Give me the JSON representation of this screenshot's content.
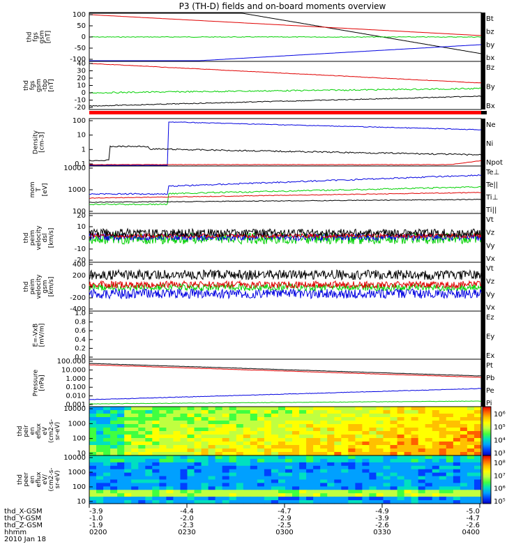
{
  "title": "P3 (TH-D) fields and on-board moments overview",
  "colors": {
    "black": "#000000",
    "red": "#e00000",
    "green": "#00d000",
    "blue": "#0000e0",
    "band": "#ff0000"
  },
  "chart_data": [
    {
      "type": "line",
      "ylabel": [
        "thd",
        "fgs",
        "gsm",
        "[nT]"
      ],
      "yticks": [
        "100",
        "50",
        "0",
        "-50",
        "-100"
      ],
      "ylim": [
        -100,
        110
      ],
      "series": [
        {
          "name": "Bt",
          "color": "black"
        },
        {
          "name": "bz",
          "color": "red"
        },
        {
          "name": "by",
          "color": "green"
        },
        {
          "name": "bx",
          "color": "blue"
        }
      ]
    },
    {
      "type": "line",
      "ylabel": [
        "thd",
        "fgs",
        "gsm",
        "-tbp",
        "[nT]"
      ],
      "yticks": [
        "40",
        "30",
        "20",
        "10",
        "0",
        "-10",
        "-20"
      ],
      "ylim": [
        -25,
        42
      ],
      "series": [
        {
          "name": "Bz",
          "color": "red"
        },
        {
          "name": "By",
          "color": "green"
        },
        {
          "name": "Bx",
          "color": "black"
        }
      ]
    },
    {
      "type": "line",
      "ylabel": [
        "Density",
        "[cm-3]"
      ],
      "yticks": [
        "100",
        "10",
        "1",
        "0.1"
      ],
      "scale": "log",
      "series": [
        {
          "name": "Ne",
          "color": "red"
        },
        {
          "name": "Ni",
          "color": "black"
        },
        {
          "name": "Npot",
          "color": "blue"
        }
      ]
    },
    {
      "type": "line",
      "ylabel": [
        "mom",
        "T",
        "[eV]"
      ],
      "yticks": [
        "10000",
        "1000",
        "100"
      ],
      "scale": "log",
      "series": [
        {
          "name": "Te⊥",
          "color": "red"
        },
        {
          "name": "Te||",
          "color": "black"
        },
        {
          "name": "Ti⊥",
          "color": "red"
        },
        {
          "name": "Ti||",
          "color": "green"
        }
      ]
    },
    {
      "type": "line",
      "ylabel": [
        "thd",
        "peim",
        "velocity",
        "dsl",
        "[km/s]"
      ],
      "yticks": [
        "20",
        "10",
        "0",
        "-10",
        "-20"
      ],
      "ylim": [
        -20,
        20
      ],
      "series": [
        {
          "name": "Vt",
          "color": "black"
        },
        {
          "name": "Vz",
          "color": "red"
        },
        {
          "name": "Vy",
          "color": "green"
        },
        {
          "name": "Vx",
          "color": "blue"
        }
      ]
    },
    {
      "type": "line",
      "ylabel": [
        "thd",
        "peim",
        "velocity",
        "gsm",
        "[km/s]"
      ],
      "yticks": [
        "400",
        "200",
        "0",
        "-200",
        "-400"
      ],
      "ylim": [
        -400,
        400
      ],
      "series": [
        {
          "name": "Vt",
          "color": "black"
        },
        {
          "name": "Vz",
          "color": "red"
        },
        {
          "name": "Vy",
          "color": "green"
        },
        {
          "name": "Vx",
          "color": "blue"
        }
      ]
    },
    {
      "type": "line",
      "ylabel": [
        "E=-VxB",
        "[mV/m]"
      ],
      "yticks": [
        "1.0",
        "0.8",
        "0.6",
        "0.4",
        "0.2",
        "0.0"
      ],
      "ylim": [
        0,
        1
      ],
      "series": [
        {
          "name": "Ez",
          "color": "red"
        },
        {
          "name": "Ey",
          "color": "green"
        },
        {
          "name": "Ex",
          "color": "blue"
        }
      ]
    },
    {
      "type": "line",
      "ylabel": [
        "Pressure",
        "[nPa]"
      ],
      "yticks": [
        "100.000",
        "10.000",
        "1.000",
        "0.100",
        "0.010",
        "0.001"
      ],
      "scale": "log",
      "series": [
        {
          "name": "Pt",
          "color": "black"
        },
        {
          "name": "Pb",
          "color": "red"
        },
        {
          "name": "Pe",
          "color": "green"
        },
        {
          "name": "Pi",
          "color": "blue"
        }
      ]
    },
    {
      "type": "heatmap",
      "ylabel": [
        "thd",
        "peir",
        "en",
        "eflux",
        "eV",
        "(cm2-s-",
        "sr-eV)"
      ],
      "yticks": [
        "10000",
        "1000",
        "100",
        "10"
      ],
      "colorbar": [
        "10⁶",
        "10⁵",
        "10⁴",
        "10³"
      ]
    },
    {
      "type": "heatmap",
      "ylabel": [
        "thd",
        "peer",
        "en",
        "eflux",
        "eV/",
        "(cm2-s-",
        "sr-eV)"
      ],
      "yticks": [
        "10000",
        "1000",
        "100",
        "10"
      ],
      "colorbar": [
        "10⁸",
        "10⁷",
        "10⁶",
        "10⁵"
      ]
    }
  ],
  "xaxis": {
    "rows": [
      {
        "label": "thd_X-GSM",
        "values": [
          "-3.9",
          "-4.4",
          "-4.7",
          "-4.9",
          "-5.0"
        ]
      },
      {
        "label": "thd_Y-GSM",
        "values": [
          "-1.0",
          "-2.0",
          "-2.9",
          "-3.9",
          "-4.7"
        ]
      },
      {
        "label": "thd_Z-GSM",
        "values": [
          "-1.9",
          "-2.3",
          "-2.5",
          "-2.6",
          "-2.6"
        ]
      },
      {
        "label": "hhmm",
        "values": [
          "0200",
          "0230",
          "0300",
          "0330",
          "0400"
        ]
      }
    ],
    "date": "2010 Jan 18"
  }
}
